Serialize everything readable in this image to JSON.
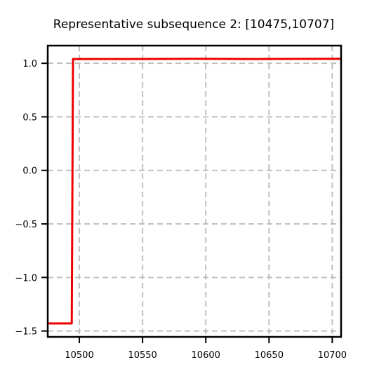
{
  "chart_data": {
    "type": "line",
    "title": "Representative subsequence 2: [10475,10707]",
    "xlabel": "",
    "ylabel": "",
    "xlim": [
      10475,
      10707
    ],
    "ylim": [
      -1.555,
      1.165
    ],
    "xticks": [
      10500,
      10550,
      10600,
      10650,
      10700
    ],
    "xtick_labels": [
      "10500",
      "10550",
      "10600",
      "10650",
      "10700"
    ],
    "yticks": [
      1.0,
      0.5,
      0.0,
      -0.5,
      -1.0,
      -1.5
    ],
    "ytick_labels": [
      "1.0",
      "0.5",
      "0.0",
      "−0.5",
      "−1.0",
      "−1.5"
    ],
    "grid": true,
    "series": [
      {
        "color": "#ee0000",
        "x": [
          10475,
          10494,
          10495,
          10540,
          10590,
          10640,
          10680,
          10707
        ],
        "y": [
          -1.43,
          -1.43,
          1.04,
          1.04,
          1.042,
          1.04,
          1.041,
          1.042
        ]
      }
    ]
  }
}
